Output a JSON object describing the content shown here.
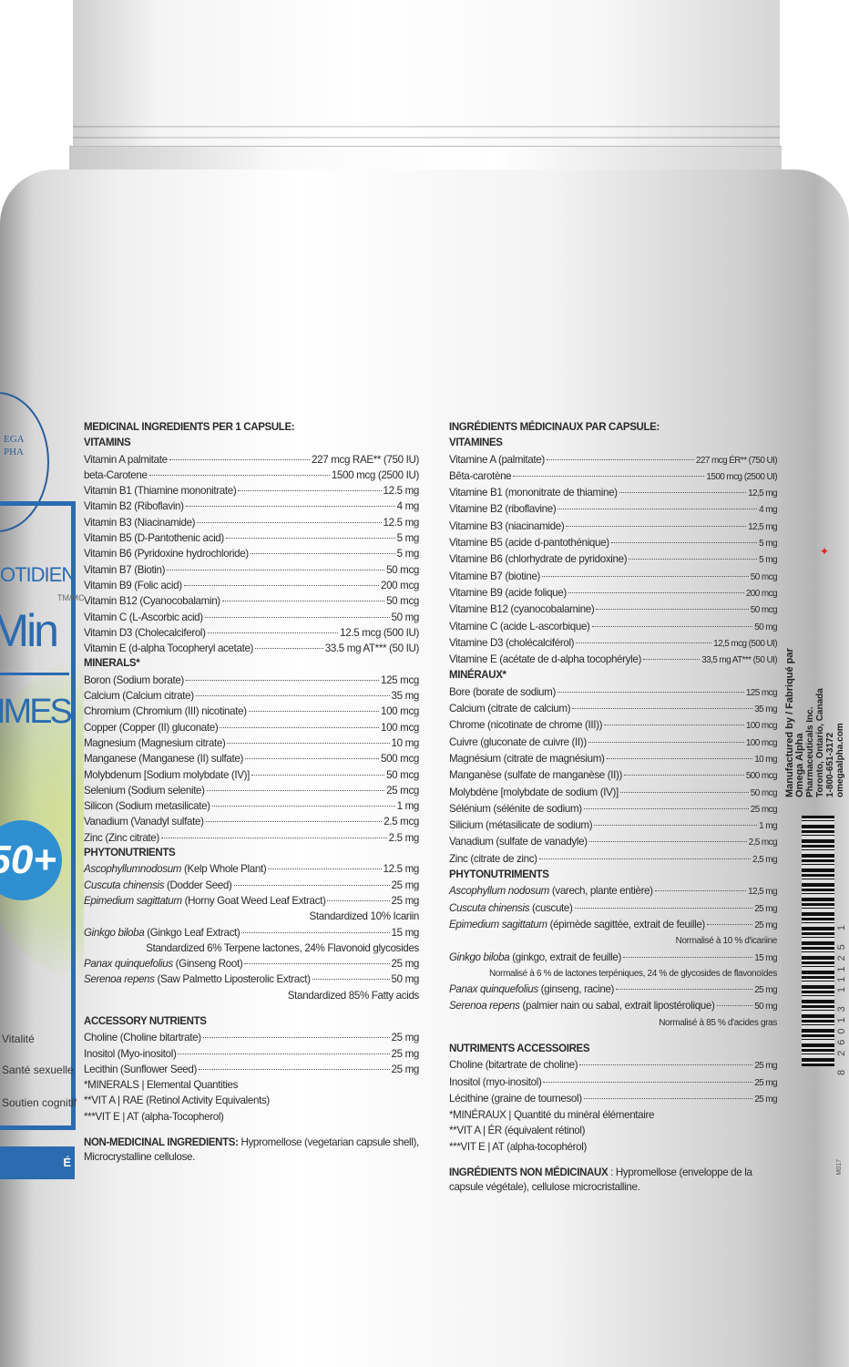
{
  "front_label": {
    "logo_lines": [
      "EGA",
      "PHA"
    ],
    "brand_top": "OTIDIEN",
    "brand_name": "itMin",
    "trademark": "TM/MC",
    "brand_sub": "IMES",
    "age_badge": "50+",
    "benefits": [
      "Vitalité",
      "Santé sexuelle",
      "Soutien cognitif"
    ],
    "quality_bar": "É SUPÉRIEURE",
    "colors": {
      "blue": "#2b6bb0",
      "green": "#a8cc3c"
    }
  },
  "english": {
    "title": "MEDICINAL INGREDIENTS PER 1 CAPSULE:",
    "sections": [
      {
        "heading": "VITAMINS",
        "items": [
          {
            "name": "Vitamin A palmitate",
            "amount": "227 mcg RAE** (750 IU)"
          },
          {
            "name": "beta-Carotene",
            "amount": "1500 mcg (2500 IU)"
          },
          {
            "name": "Vitamin B1 (Thiamine mononitrate)",
            "amount": "12.5 mg"
          },
          {
            "name": "Vitamin B2 (Riboflavin)",
            "amount": "4 mg"
          },
          {
            "name": "Vitamin B3 (Niacinamide)",
            "amount": "12.5 mg"
          },
          {
            "name": "Vitamin B5 (D-Pantothenic acid)",
            "amount": "5 mg"
          },
          {
            "name": "Vitamin B6 (Pyridoxine hydrochloride)",
            "amount": "5 mg"
          },
          {
            "name": "Vitamin B7 (Biotin)",
            "amount": "50 mcg"
          },
          {
            "name": "Vitamin B9 (Folic acid)",
            "amount": "200 mcg"
          },
          {
            "name": "Vitamin B12 (Cyanocobalamin)",
            "amount": "50 mcg"
          },
          {
            "name": "Vitamin C (L-Ascorbic acid)",
            "amount": "50 mg"
          },
          {
            "name": "Vitamin D3 (Cholecalciferol)",
            "amount": "12.5 mcg (500 IU)"
          },
          {
            "name": "Vitamin E (d-alpha Tocopheryl acetate)",
            "amount": "33.5 mg AT*** (50 IU)"
          }
        ]
      },
      {
        "heading": "MINERALS*",
        "items": [
          {
            "name": "Boron (Sodium borate)",
            "amount": "125 mcg"
          },
          {
            "name": "Calcium (Calcium citrate)",
            "amount": "35 mg"
          },
          {
            "name": "Chromium (Chromium (III) nicotinate)",
            "amount": "100 mcg"
          },
          {
            "name": "Copper (Copper (II) gluconate)",
            "amount": "100 mcg"
          },
          {
            "name": "Magnesium (Magnesium citrate)",
            "amount": "10 mg"
          },
          {
            "name": "Manganese (Manganese (II) sulfate)",
            "amount": "500 mcg"
          },
          {
            "name": "Molybdenum [Sodium molybdate (IV)]",
            "amount": "50 mcg"
          },
          {
            "name": "Selenium (Sodium selenite)",
            "amount": "25 mcg"
          },
          {
            "name": "Silicon (Sodium metasilicate)",
            "amount": "1 mg"
          },
          {
            "name": "Vanadium (Vanadyl sulfate)",
            "amount": "2.5 mcg"
          },
          {
            "name": "Zinc (Zinc citrate)",
            "amount": "2.5 mg"
          }
        ]
      },
      {
        "heading": "PHYTONUTRIENTS",
        "items": [
          {
            "latin": "Ascophyllumnodosum",
            "name": " (Kelp Whole Plant)",
            "amount": "12.5 mg"
          },
          {
            "latin": "Cuscuta chinensis",
            "name": " (Dodder Seed)",
            "amount": "25 mg"
          },
          {
            "latin": "Epimedium sagittatum",
            "name": " (Horny Goat Weed Leaf Extract)",
            "amount": "25 mg"
          },
          {
            "note": "Standardized 10% Icariin"
          },
          {
            "latin": "Ginkgo biloba",
            "name": " (Ginkgo Leaf Extract)",
            "amount": "15 mg"
          },
          {
            "note": "Standardized 6% Terpene lactones, 24% Flavonoid glycosides"
          },
          {
            "latin": "Panax quinquefolius",
            "name": " (Ginseng Root)",
            "amount": "25 mg"
          },
          {
            "latin": "Serenoa repens",
            "name": " (Saw Palmetto Liposterolic Extract)",
            "amount": "50 mg"
          },
          {
            "note": "Standardized 85% Fatty acids"
          }
        ]
      },
      {
        "heading": "ACCESSORY NUTRIENTS",
        "items": [
          {
            "name": "Choline (Choline bitartrate)",
            "amount": "25 mg"
          },
          {
            "name": "Inositol (Myo-inositol)",
            "amount": "25 mg"
          },
          {
            "name": "Lecithin (Sunflower Seed)",
            "amount": "25 mg"
          }
        ]
      }
    ],
    "footnotes": [
      "*MINERALS | Elemental Quantities",
      "**VIT A | RAE (Retinol Activity Equivalents)",
      "***VIT E | AT (alpha-Tocopherol)"
    ],
    "non_medicinal_label": "NON-MEDICINAL INGREDIENTS:",
    "non_medicinal_text": " Hypromellose (vegetarian capsule shell), Microcrystalline cellulose."
  },
  "french": {
    "title": "INGRÉDIENTS MÉDICINAUX PAR CAPSULE:",
    "sections": [
      {
        "heading": "VITAMINES",
        "items": [
          {
            "name": "Vitamine A (palmitate)",
            "amount": "227 mcg ÉR** (750 UI)"
          },
          {
            "name": "Bêta-carotène",
            "amount": "1500 mcg (2500 UI)"
          },
          {
            "name": "Vitamine B1 (mononitrate de thiamine)",
            "amount": "12,5 mg"
          },
          {
            "name": "Vitamine B2 (riboflavine)",
            "amount": "4 mg"
          },
          {
            "name": "Vitamine B3 (niacinamide)",
            "amount": "12,5 mg"
          },
          {
            "name": "Vitamine B5 (acide d-pantothénique)",
            "amount": "5 mg"
          },
          {
            "name": "Vitamine B6 (chlorhydrate de pyridoxine)",
            "amount": "5 mg"
          },
          {
            "name": "Vitamine B7 (biotine)",
            "amount": "50 mcg"
          },
          {
            "name": "Vitamine B9 (acide folique)",
            "amount": "200 mcg"
          },
          {
            "name": "Vitamine B12 (cyanocobalamine)",
            "amount": "50 mcg"
          },
          {
            "name": "Vitamine C (acide L-ascorbique)",
            "amount": "50 mg"
          },
          {
            "name": "Vitamine D3 (cholécalciférol)",
            "amount": "12,5 mcg (500 UI)"
          },
          {
            "name": "Vitamine E (acétate de d-alpha tocophéryle)",
            "amount": "33,5 mg AT*** (50 UI)"
          }
        ]
      },
      {
        "heading": "MINÉRAUX*",
        "items": [
          {
            "name": "Bore (borate de sodium)",
            "amount": "125 mcg"
          },
          {
            "name": "Calcium (citrate de calcium)",
            "amount": "35 mg"
          },
          {
            "name": "Chrome (nicotinate de chrome (III))",
            "amount": "100 mcg"
          },
          {
            "name": "Cuivre (gluconate de cuivre (II))",
            "amount": "100 mcg"
          },
          {
            "name": "Magnésium (citrate de magnésium)",
            "amount": "10 mg"
          },
          {
            "name": "Manganèse (sulfate de manganèse (II))",
            "amount": "500 mcg"
          },
          {
            "name": "Molybdène [molybdate de sodium (IV)]",
            "amount": "50 mcg"
          },
          {
            "name": "Sélénium (sélénite de sodium)",
            "amount": "25 mcg"
          },
          {
            "name": "Silicium (métasilicate de sodium)",
            "amount": "1 mg"
          },
          {
            "name": "Vanadium (sulfate de vanadyle)",
            "amount": "2,5 mcg"
          },
          {
            "name": "Zinc (citrate de zinc)",
            "amount": "2,5 mg"
          }
        ]
      },
      {
        "heading": "PHYTONUTRIMENTS",
        "items": [
          {
            "latin": "Ascophyllum nodosum",
            "name": " (varech, plante entière)",
            "amount": "12,5 mg"
          },
          {
            "latin": "Cuscuta chinensis",
            "name": " (cuscute)",
            "amount": "25 mg"
          },
          {
            "latin": "Epimedium sagittatum",
            "name": " (épimède sagittée, extrait de feuille)",
            "amount": "25 mg"
          },
          {
            "note": "Normalisé à 10 % d'icariine"
          },
          {
            "latin": "Ginkgo biloba",
            "name": " (ginkgo, extrait de feuille)",
            "amount": "15 mg"
          },
          {
            "note": "Normalisé à 6 % de lactones terpéniques, 24 % de glycosides de flavonoïdes"
          },
          {
            "latin": "Panax quinquefolius",
            "name": " (ginseng, racine)",
            "amount": "25 mg"
          },
          {
            "latin": "Serenoa repens",
            "name": " (palmier nain ou sabal, extrait lipostérolique)",
            "amount": "50 mg"
          },
          {
            "note": "Normalisé à 85 % d'acides gras"
          }
        ]
      },
      {
        "heading": "NUTRIMENTS ACCESSOIRES",
        "items": [
          {
            "name": "Choline (bitartrate de choline)",
            "amount": "25 mg"
          },
          {
            "name": "Inositol (myo-inositol)",
            "amount": "25 mg"
          },
          {
            "name": "Lécithine (graine de tournesol)",
            "amount": "25 mg"
          }
        ]
      }
    ],
    "footnotes": [
      "*MINÉRAUX | Quantité du minéral élémentaire",
      "**VIT A | ÉR (équivalent rétinol)",
      "***VIT E | AT (alpha-tocophérol)"
    ],
    "non_medicinal_label": "INGRÉDIENTS NON MÉDICINAUX",
    "non_medicinal_text": " : Hypromellose (enveloppe de la capsule végétale), cellulose microcristalline."
  },
  "manufacturer": {
    "lines": [
      "Manufactured by / Fabriqué par",
      "Omega Alpha",
      "Pharmaceuticals Inc.",
      "Toronto, Ontario, Canada",
      "1-800-651-3172",
      "omegaalpha.com"
    ],
    "icon": "maple-leaf-icon"
  },
  "barcode": {
    "digits": "8 26013 11125 1"
  },
  "code": "M017"
}
